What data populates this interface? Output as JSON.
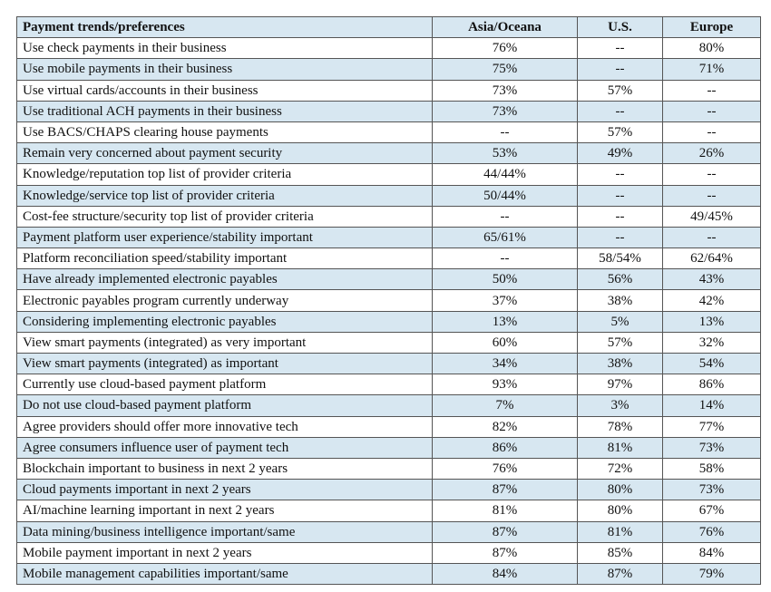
{
  "table": {
    "header": [
      "Payment trends/preferences",
      "Asia/Oceana",
      "U.S.",
      "Europe"
    ],
    "rows": [
      [
        "Use check payments in their business",
        "76%",
        "--",
        "80%"
      ],
      [
        "Use mobile payments in their business",
        "75%",
        "--",
        "71%"
      ],
      [
        "Use virtual cards/accounts in their business",
        "73%",
        "57%",
        "--"
      ],
      [
        "Use traditional ACH payments in their business",
        "73%",
        "--",
        "--"
      ],
      [
        "Use BACS/CHAPS clearing house payments",
        "--",
        "57%",
        "--"
      ],
      [
        "Remain very concerned about payment security",
        "53%",
        "49%",
        "26%"
      ],
      [
        "Knowledge/reputation top list of provider criteria",
        "44/44%",
        "--",
        "--"
      ],
      [
        "Knowledge/service top list of provider criteria",
        "50/44%",
        "--",
        "--"
      ],
      [
        "Cost-fee structure/security top list of provider criteria",
        "--",
        "--",
        "49/45%"
      ],
      [
        "Payment platform user experience/stability important",
        "65/61%",
        "--",
        "--"
      ],
      [
        "Platform reconciliation speed/stability important",
        "--",
        "58/54%",
        "62/64%"
      ],
      [
        "Have already implemented electronic payables",
        "50%",
        "56%",
        "43%"
      ],
      [
        "Electronic payables program currently underway",
        "37%",
        "38%",
        "42%"
      ],
      [
        "Considering implementing electronic payables",
        "13%",
        "5%",
        "13%"
      ],
      [
        "View smart payments (integrated) as very important",
        "60%",
        "57%",
        "32%"
      ],
      [
        "View smart payments (integrated) as important",
        "34%",
        "38%",
        "54%"
      ],
      [
        "Currently use cloud-based payment platform",
        "93%",
        "97%",
        "86%"
      ],
      [
        "Do not use cloud-based payment platform",
        "7%",
        "3%",
        "14%"
      ],
      [
        "Agree providers should offer more innovative tech",
        "82%",
        "78%",
        "77%"
      ],
      [
        "Agree consumers influence user of payment tech",
        "86%",
        "81%",
        "73%"
      ],
      [
        "Blockchain important to business in next 2 years",
        "76%",
        "72%",
        "58%"
      ],
      [
        "Cloud payments important in next 2 years",
        "87%",
        "80%",
        "73%"
      ],
      [
        "AI/machine learning important in next 2 years",
        "81%",
        "80%",
        "67%"
      ],
      [
        "Data mining/business intelligence important/same",
        "87%",
        "81%",
        "76%"
      ],
      [
        "Mobile payment important in next 2 years",
        "87%",
        "85%",
        "84%"
      ],
      [
        "Mobile management capabilities important/same",
        "84%",
        "87%",
        "79%"
      ]
    ]
  }
}
